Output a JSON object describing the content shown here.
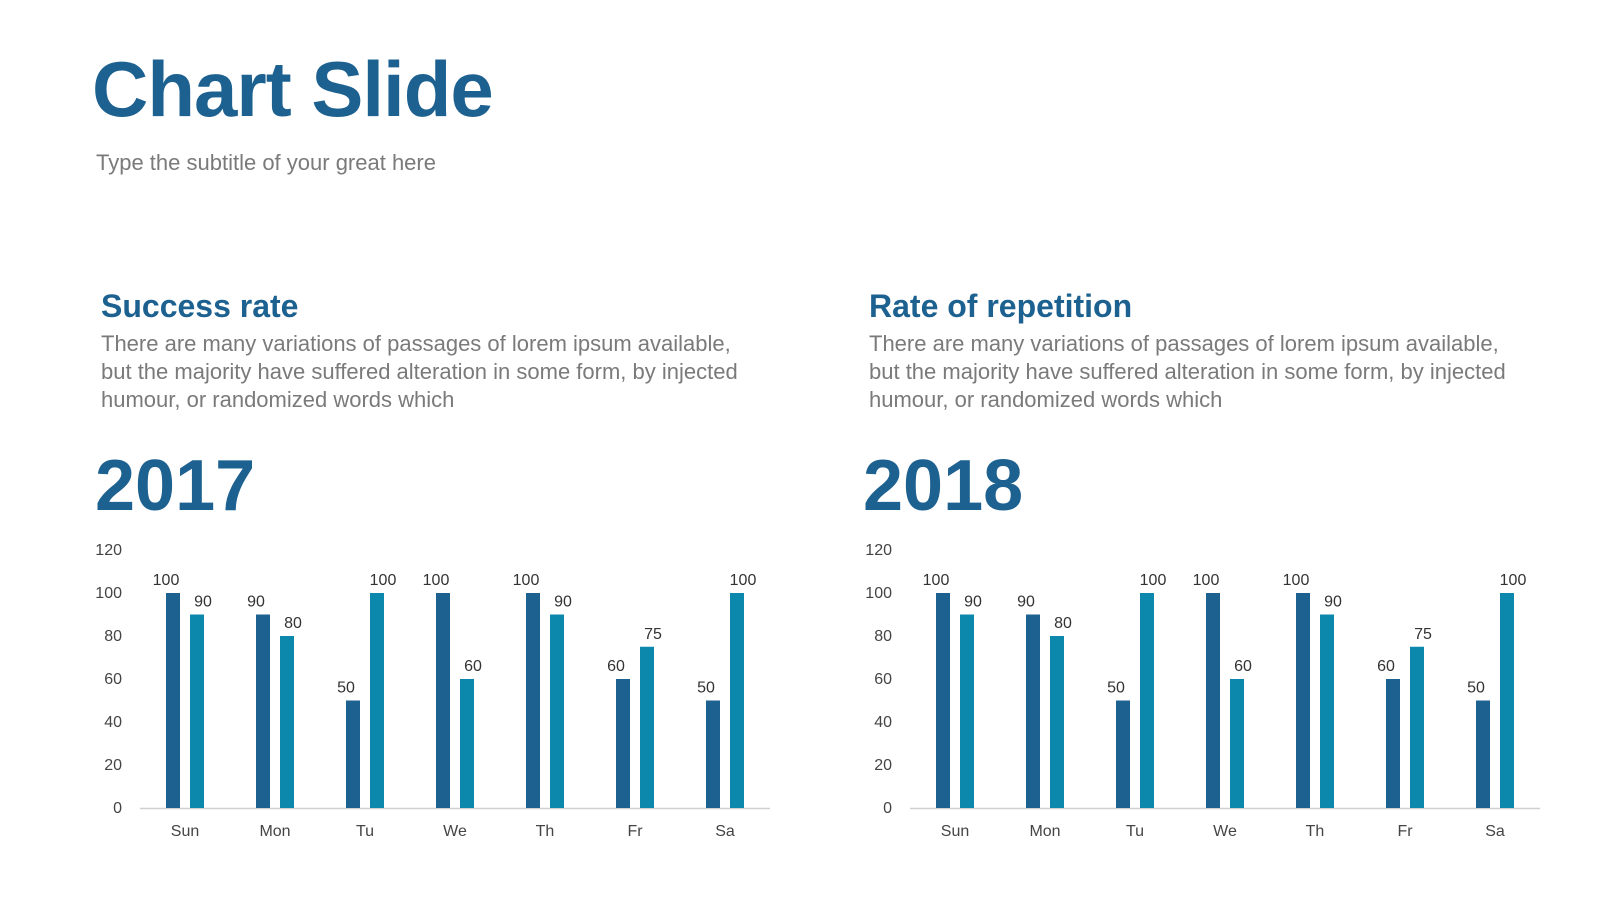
{
  "slide": {
    "title": "Chart Slide",
    "subtitle": "Type the subtitle of your great here"
  },
  "panels": [
    {
      "heading": "Success rate",
      "description": "There are many variations of passages of lorem ipsum available, but the majority have suffered alteration in some form, by injected humour, or randomized words which",
      "year": "2017"
    },
    {
      "heading": "Rate of repetition",
      "description": "There are many variations of passages of lorem ipsum available, but the majority have suffered alteration in some form, by injected humour, or randomized words which",
      "year": "2018"
    }
  ],
  "colors": {
    "title": "#1d6190",
    "series_1": "#1d6190",
    "series_2": "#0b88ab",
    "text_gray": "#7a7a7a"
  },
  "chart_data": [
    {
      "type": "bar",
      "categories": [
        "Sun",
        "Mon",
        "Tu",
        "We",
        "Th",
        "Fr",
        "Sa"
      ],
      "series": [
        {
          "values": [
            100,
            90,
            50,
            100,
            100,
            60,
            50
          ]
        },
        {
          "values": [
            90,
            80,
            100,
            60,
            90,
            75,
            100
          ]
        }
      ],
      "yticks": [
        0,
        20,
        40,
        60,
        80,
        100,
        120
      ],
      "ylim": [
        0,
        120
      ],
      "grid": false,
      "data_labels": true
    },
    {
      "type": "bar",
      "categories": [
        "Sun",
        "Mon",
        "Tu",
        "We",
        "Th",
        "Fr",
        "Sa"
      ],
      "series": [
        {
          "values": [
            100,
            90,
            50,
            100,
            100,
            60,
            50
          ]
        },
        {
          "values": [
            90,
            80,
            100,
            60,
            90,
            75,
            100
          ]
        }
      ],
      "yticks": [
        0,
        20,
        40,
        60,
        80,
        100,
        120
      ],
      "ylim": [
        0,
        120
      ],
      "grid": false,
      "data_labels": true
    }
  ]
}
